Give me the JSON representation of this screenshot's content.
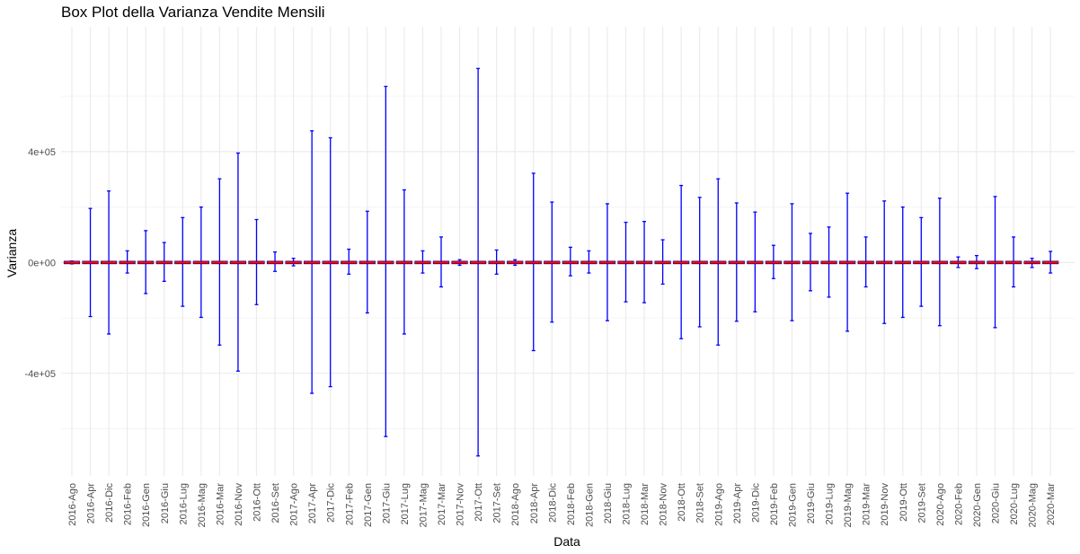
{
  "chart_data": {
    "type": "box",
    "title": "Box Plot della Varianza Vendite Mensili",
    "xlabel": "Data",
    "ylabel": "Varianza",
    "ylim": [
      -770000,
      850000
    ],
    "y_ticks": [
      -400000,
      0,
      400000
    ],
    "y_tick_labels": [
      "-4e+05",
      "0e+00",
      "4e+05"
    ],
    "grid": true,
    "colors": {
      "whisker": "#0000ff",
      "median": "#ff0000",
      "box": "#00008b",
      "grid": "#ebebeb"
    },
    "categories": [
      "2016-Ago",
      "2016-Apr",
      "2016-Dic",
      "2016-Feb",
      "2016-Gen",
      "2016-Giu",
      "2016-Lug",
      "2016-Mag",
      "2016-Mar",
      "2016-Nov",
      "2016-Ott",
      "2016-Set",
      "2017-Ago",
      "2017-Apr",
      "2017-Dic",
      "2017-Feb",
      "2017-Gen",
      "2017-Giu",
      "2017-Lug",
      "2017-Mag",
      "2017-Mar",
      "2017-Nov",
      "2017-Ott",
      "2017-Set",
      "2018-Ago",
      "2018-Apr",
      "2018-Dic",
      "2018-Feb",
      "2018-Gen",
      "2018-Giu",
      "2018-Lug",
      "2018-Mar",
      "2018-Nov",
      "2018-Ott",
      "2018-Set",
      "2019-Ago",
      "2019-Apr",
      "2019-Dic",
      "2019-Feb",
      "2019-Gen",
      "2019-Giu",
      "2019-Lug",
      "2019-Mag",
      "2019-Mar",
      "2019-Nov",
      "2019-Ott",
      "2019-Set",
      "2020-Ago",
      "2020-Feb",
      "2020-Gen",
      "2020-Giu",
      "2020-Lug",
      "2020-Mag",
      "2020-Mar"
    ],
    "whisker_min": [
      -5000,
      -195000,
      -258000,
      -38000,
      -112000,
      -68000,
      -158000,
      -198000,
      -298000,
      -392000,
      -152000,
      -32000,
      -12000,
      -472000,
      -448000,
      -42000,
      -182000,
      -628000,
      -258000,
      -38000,
      -88000,
      -10000,
      -698000,
      -42000,
      -10000,
      -318000,
      -215000,
      -48000,
      -38000,
      -210000,
      -142000,
      -145000,
      -78000,
      -275000,
      -232000,
      -298000,
      -212000,
      -178000,
      -58000,
      -210000,
      -102000,
      -125000,
      -248000,
      -88000,
      -220000,
      -198000,
      -158000,
      -228000,
      -18000,
      -22000,
      -235000,
      -88000,
      -18000,
      -38000
    ],
    "whisker_max": [
      5000,
      195000,
      258000,
      42000,
      115000,
      72000,
      162000,
      200000,
      302000,
      395000,
      155000,
      38000,
      15000,
      475000,
      450000,
      48000,
      185000,
      635000,
      262000,
      42000,
      92000,
      10000,
      700000,
      45000,
      10000,
      322000,
      218000,
      55000,
      42000,
      212000,
      145000,
      148000,
      82000,
      278000,
      235000,
      302000,
      215000,
      182000,
      62000,
      212000,
      105000,
      128000,
      250000,
      92000,
      222000,
      200000,
      162000,
      232000,
      20000,
      25000,
      238000,
      92000,
      15000,
      40000
    ],
    "q1": [
      -4000,
      -4000,
      -4000,
      -4000,
      -4000,
      -4000,
      -4000,
      -4000,
      -4000,
      -4000,
      -4000,
      -4000,
      -4000,
      -4000,
      -4000,
      -4000,
      -4000,
      -4000,
      -4000,
      -4000,
      -4000,
      -4000,
      -4000,
      -4000,
      -4000,
      -4000,
      -4000,
      -4000,
      -4000,
      -4000,
      -4000,
      -4000,
      -4000,
      -4000,
      -4000,
      -4000,
      -4000,
      -4000,
      -4000,
      -4000,
      -4000,
      -4000,
      -4000,
      -4000,
      -4000,
      -4000,
      -4000,
      -4000,
      -4000,
      -4000,
      -4000,
      -4000,
      -4000,
      -4000
    ],
    "median": [
      0,
      0,
      0,
      0,
      0,
      0,
      0,
      0,
      0,
      0,
      0,
      0,
      0,
      0,
      0,
      0,
      0,
      0,
      0,
      0,
      0,
      0,
      0,
      0,
      0,
      0,
      0,
      0,
      0,
      0,
      0,
      0,
      0,
      0,
      0,
      0,
      0,
      0,
      0,
      0,
      0,
      0,
      0,
      0,
      0,
      0,
      0,
      0,
      0,
      0,
      0,
      0,
      0,
      0
    ],
    "q3": [
      4000,
      4000,
      4000,
      4000,
      4000,
      4000,
      4000,
      4000,
      4000,
      4000,
      4000,
      4000,
      4000,
      4000,
      4000,
      4000,
      4000,
      4000,
      4000,
      4000,
      4000,
      4000,
      4000,
      4000,
      4000,
      4000,
      4000,
      4000,
      4000,
      4000,
      4000,
      4000,
      4000,
      4000,
      4000,
      4000,
      4000,
      4000,
      4000,
      4000,
      4000,
      4000,
      4000,
      4000,
      4000,
      4000,
      4000,
      4000,
      4000,
      4000,
      4000,
      4000,
      4000,
      4000
    ]
  }
}
